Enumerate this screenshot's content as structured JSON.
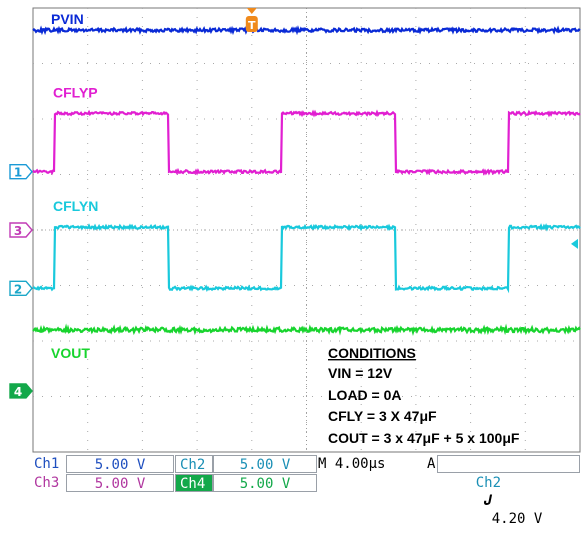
{
  "chart_data": {
    "type": "line",
    "title": "",
    "xlabel": "",
    "ylabel": "",
    "grid": true,
    "x_divisions": 10,
    "y_divisions": 8,
    "time_per_div_us": 4.0,
    "trigger_marker": "T",
    "series": [
      {
        "name": "PVIN",
        "channel": 4,
        "color": "#0a2ad6",
        "level_div": 3.6,
        "noise_div": 0.03,
        "kind": "dc"
      },
      {
        "name": "CFLYP",
        "channel": 1,
        "color": "#e11fd1",
        "high_div": 2.1,
        "low_div": 1.05,
        "period_div": 4.15,
        "duty": 0.5,
        "phase_div": 0.4,
        "kind": "square"
      },
      {
        "name": "CFLYN",
        "channel": 3,
        "color": "#19c9dc",
        "high_div": 0.05,
        "low_div": -1.05,
        "period_div": 4.15,
        "duty": 0.5,
        "phase_div": 0.4,
        "kind": "square"
      },
      {
        "name": "VOUT",
        "channel": 2,
        "color": "#18d42e",
        "level_div": -1.8,
        "noise_div": 0.04,
        "kind": "dc"
      }
    ],
    "channel_markers": [
      {
        "label": "1",
        "color": "#1a9ad6",
        "level_div": 1.05,
        "filled": false
      },
      {
        "label": "3",
        "color": "#c23bb6",
        "level_div": 0.0,
        "filled": false
      },
      {
        "label": "2",
        "color": "#1aa6c8",
        "level_div": -1.05,
        "filled": false
      },
      {
        "label": "4",
        "color": "#13a84a",
        "level_div": -2.9,
        "filled": true
      }
    ],
    "trigger_level_div": -0.25,
    "annotations": {
      "heading": "CONDITIONS",
      "lines": [
        "VIN = 12V",
        "LOAD = 0A",
        "CFLY = 3 X 47μF",
        "COUT = 3 x 47μF + 5 x 100μF"
      ]
    }
  },
  "readout": {
    "ch1_label": "Ch1",
    "ch1_scale": "5.00 V",
    "ch2_label": "Ch2",
    "ch2_scale": "5.00 V",
    "ch3_label": "Ch3",
    "ch3_scale": "5.00 V",
    "ch4_label": "Ch4",
    "ch4_scale": "5.00 V",
    "timebase": "M 4.00μs",
    "trigger_mode": "A",
    "trigger_source": "Ch2",
    "trigger_slope": "𝑱",
    "trigger_level": "4.20 V"
  },
  "colors": {
    "grid": "#a9a9a9",
    "ch1_text": "#1f4fbf",
    "ch3_text": "#b0369f",
    "ch2_text": "#1a8fb5"
  }
}
